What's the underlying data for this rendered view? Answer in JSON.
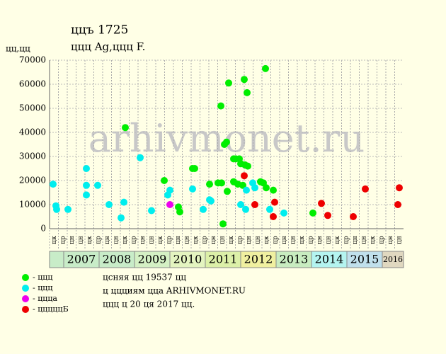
{
  "chart_data": {
    "type": "scatter",
    "title": "ццъ 1725",
    "subtitle": "ццц Ag,ццц F.",
    "y_label": "цц,цц",
    "watermark": "arhivmonet.ru",
    "xlim": [
      2006.6,
      2016.6
    ],
    "ylim": [
      0,
      70000
    ],
    "yticks": [
      0,
      10000,
      20000,
      30000,
      40000,
      50000,
      60000,
      70000
    ],
    "grid": true,
    "column_labels": [
      "цк",
      "цр",
      "цн",
      "цн",
      "цк",
      "цр",
      "цн",
      "цн",
      "цк",
      "цр",
      "цн",
      "цн",
      "цк",
      "цр",
      "цн",
      "цн",
      "цк",
      "цр",
      "цн",
      "цн",
      "цк",
      "цр",
      "цн",
      "цн",
      "цк",
      "цр",
      "цн",
      "цн",
      "цк",
      "цр",
      "цн",
      "цн",
      "цк",
      "цр",
      "цн",
      "цн",
      "цк",
      "цр",
      "цн",
      "цн"
    ],
    "year_bands": [
      {
        "label": "2007",
        "start": 2007,
        "end": 2008,
        "color": "#c8ecc8"
      },
      {
        "label": "2008",
        "start": 2008,
        "end": 2009,
        "color": "#c8ecc8"
      },
      {
        "label": "2009",
        "start": 2009,
        "end": 2010,
        "color": "#d4f0c4"
      },
      {
        "label": "2010",
        "start": 2010,
        "end": 2011,
        "color": "#e4f4c0"
      },
      {
        "label": "2011",
        "start": 2011,
        "end": 2012,
        "color": "#dcf0a8"
      },
      {
        "label": "2012",
        "start": 2012,
        "end": 2013,
        "color": "#f0f0a0"
      },
      {
        "label": "2013",
        "start": 2013,
        "end": 2014,
        "color": "#c8ecc0"
      },
      {
        "label": "2014",
        "start": 2014,
        "end": 2015,
        "color": "#b4f4f0"
      },
      {
        "label": "2015",
        "start": 2015,
        "end": 2016,
        "color": "#c0e0ec"
      },
      {
        "label": "2016",
        "start": 2016,
        "end": 2016.6,
        "color": "#e0d8c0"
      }
    ],
    "series": [
      {
        "name": "- ццц",
        "color": "#00ee00",
        "x": [
          2008.74,
          2009.84,
          2010.24,
          2010.28,
          2010.64,
          2010.7,
          2011.12,
          2011.36,
          2011.46,
          2011.44,
          2011.5,
          2011.54,
          2011.6,
          2011.62,
          2011.66,
          2011.8,
          2011.86,
          2011.8,
          2011.92,
          2011.96,
          2012.0,
          2012.06,
          2012.1,
          2012.12,
          2012.18,
          2012.2,
          2012.56,
          2012.64,
          2012.7,
          2012.72,
          2012.92,
          2014.04
        ],
        "values": [
          42000,
          20000,
          9000,
          7000,
          25000,
          25000,
          18500,
          19000,
          19000,
          51000,
          2000,
          35000,
          36000,
          15500,
          60500,
          29000,
          29000,
          19500,
          18500,
          29000,
          27000,
          18000,
          62000,
          26500,
          56500,
          26000,
          19500,
          19000,
          66500,
          17000,
          16000,
          6500
        ]
      },
      {
        "name": "- ццц",
        "color": "#00eeee",
        "x": [
          2006.7,
          2006.78,
          2006.8,
          2007.12,
          2007.64,
          2007.64,
          2007.64,
          2007.96,
          2008.28,
          2008.62,
          2008.7,
          2009.16,
          2009.48,
          2009.94,
          2010.0,
          2010.64,
          2010.94,
          2011.12,
          2011.16,
          2012.0,
          2012.14,
          2012.16,
          2012.34,
          2012.4,
          2012.82,
          2013.22
        ],
        "values": [
          18500,
          9500,
          8000,
          8000,
          25000,
          18000,
          14000,
          18000,
          10000,
          4500,
          11000,
          29500,
          7500,
          14000,
          16000,
          16500,
          8000,
          12000,
          11500,
          10000,
          8000,
          16000,
          19000,
          17000,
          8000,
          6500
        ]
      },
      {
        "name": "- ццца",
        "color": "#ee00ee",
        "x": [
          2010.0
        ],
        "values": [
          10000
        ]
      },
      {
        "name": "- цццццБ",
        "color": "#ee0000",
        "x": [
          2012.1,
          2012.4,
          2012.92,
          2012.96,
          2014.28,
          2014.46,
          2015.18,
          2015.52,
          2016.44,
          2016.48
        ],
        "values": [
          22000,
          10000,
          5000,
          11000,
          10500,
          5500,
          5000,
          16500,
          10000,
          17000
        ]
      }
    ],
    "notes": [
      "цсняя цц 19537 цц",
      "ц ццциям ццa ARHIVMONET.RU",
      "ццц ц 20 ця 2017 цц."
    ]
  }
}
